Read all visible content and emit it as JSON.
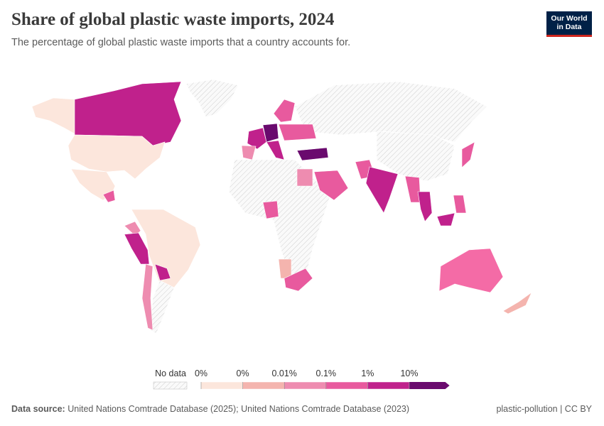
{
  "header": {
    "title": "Share of global plastic waste imports, 2024",
    "subtitle": "The percentage of global plastic waste imports that a country accounts for.",
    "logo": [
      "Our World",
      "in Data"
    ]
  },
  "legend": {
    "no_data": "No data",
    "bins": [
      "0%",
      "0%",
      "0.01%",
      "0.1%",
      "1%",
      "10%"
    ],
    "colors": [
      "#fce6dc",
      "#f4b4ae",
      "#ee8cb0",
      "#e85a9e",
      "#c0218c",
      "#6a0a6e"
    ]
  },
  "footer": {
    "source_label": "Data source:",
    "source": "United Nations Comtrade Database (2025); United Nations Comtrade Database (2023)",
    "slug": "plastic-pollution | CC BY"
  }
}
